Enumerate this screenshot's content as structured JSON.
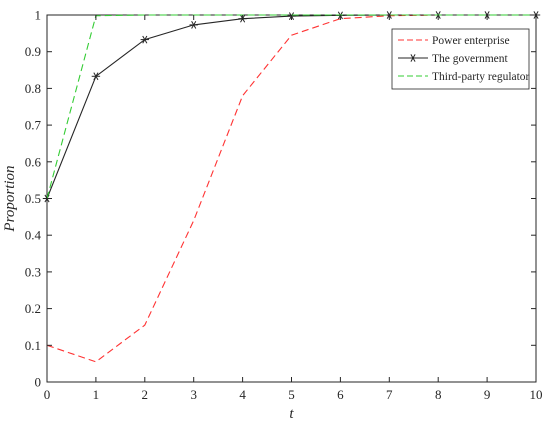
{
  "chart_data": {
    "type": "line",
    "title": "",
    "xlabel": "t",
    "ylabel": "Proportion",
    "xlim": [
      0,
      10
    ],
    "ylim": [
      0,
      1
    ],
    "x": [
      0,
      1,
      2,
      3,
      4,
      5,
      6,
      7,
      8,
      9,
      10
    ],
    "x_ticks": [
      "0",
      "1",
      "2",
      "3",
      "4",
      "5",
      "6",
      "7",
      "8",
      "9",
      "10"
    ],
    "y_ticks": [
      "0",
      "0.1",
      "0.2",
      "0.3",
      "0.4",
      "0.5",
      "0.6",
      "0.7",
      "0.8",
      "0.9",
      "1"
    ],
    "grid": false,
    "legend_position": "top-right",
    "series": [
      {
        "name": "Power enterprise",
        "color": "#ff3333",
        "style": "dashed",
        "marker": "none",
        "values": [
          0.1,
          0.055,
          0.155,
          0.44,
          0.78,
          0.945,
          0.99,
          0.998,
          1,
          1,
          1
        ]
      },
      {
        "name": "The government",
        "color": "#262626",
        "style": "solid",
        "marker": "asterisk",
        "values": [
          0.5,
          0.833,
          0.933,
          0.973,
          0.99,
          0.997,
          0.999,
          1,
          1,
          1,
          1
        ]
      },
      {
        "name": "Third-party regulator",
        "color": "#33cc33",
        "style": "dashed",
        "marker": "none",
        "values": [
          0.5,
          0.998,
          1,
          1,
          1,
          1,
          1,
          1,
          1,
          1,
          1
        ]
      }
    ]
  }
}
